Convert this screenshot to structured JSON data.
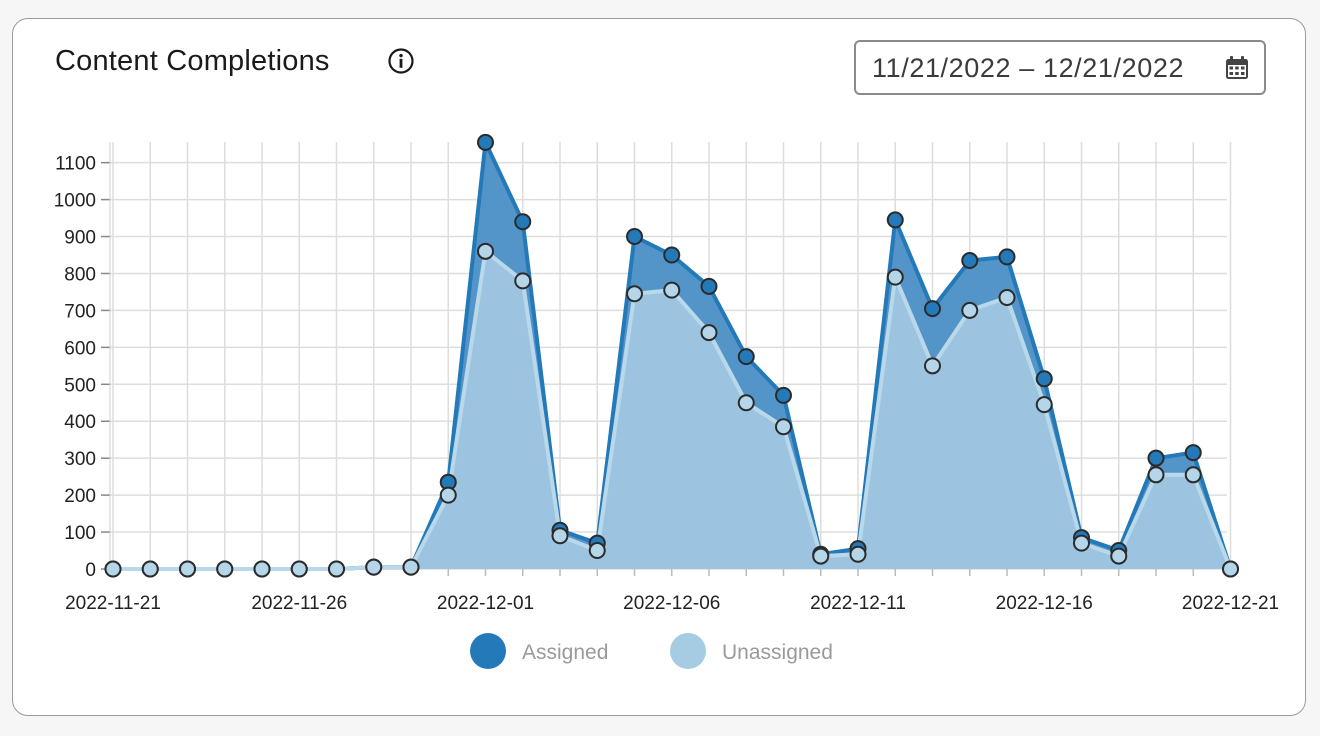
{
  "card": {
    "title": "Content Completions",
    "date_range": "11/21/2022 – 12/21/2022"
  },
  "icons": {
    "info": "info-circle-icon",
    "calendar": "calendar-icon"
  },
  "colors": {
    "assigned": "#2479b8",
    "assigned_fill": "#4b8fc6",
    "unassigned": "#a6cce3",
    "unassigned_fill": "#9cc4e0",
    "grid": "#dddddd"
  },
  "chart_data": {
    "type": "area",
    "title": "",
    "xlabel": "",
    "ylabel": "",
    "ylim": [
      0,
      1150
    ],
    "y_ticks": [
      0,
      100,
      200,
      300,
      400,
      500,
      600,
      700,
      800,
      900,
      1000,
      1100
    ],
    "x_tick_labels": [
      "2022-11-21",
      "2022-11-26",
      "2022-12-01",
      "2022-12-06",
      "2022-12-11",
      "2022-12-16",
      "2022-12-21"
    ],
    "x": [
      "2022-11-21",
      "2022-11-22",
      "2022-11-23",
      "2022-11-24",
      "2022-11-25",
      "2022-11-26",
      "2022-11-27",
      "2022-11-28",
      "2022-11-29",
      "2022-11-30",
      "2022-12-01",
      "2022-12-02",
      "2022-12-03",
      "2022-12-04",
      "2022-12-05",
      "2022-12-06",
      "2022-12-07",
      "2022-12-08",
      "2022-12-09",
      "2022-12-10",
      "2022-12-11",
      "2022-12-12",
      "2022-12-13",
      "2022-12-14",
      "2022-12-15",
      "2022-12-16",
      "2022-12-17",
      "2022-12-18",
      "2022-12-19",
      "2022-12-20",
      "2022-12-21"
    ],
    "grid": true,
    "legend_position": "bottom-center",
    "series": [
      {
        "name": "Assigned",
        "values": [
          0,
          0,
          0,
          0,
          0,
          0,
          0,
          5,
          5,
          235,
          1155,
          940,
          105,
          70,
          900,
          850,
          765,
          575,
          470,
          40,
          55,
          945,
          705,
          835,
          845,
          515,
          85,
          50,
          300,
          315,
          0
        ]
      },
      {
        "name": "Unassigned",
        "values": [
          0,
          0,
          0,
          0,
          0,
          0,
          0,
          5,
          5,
          200,
          860,
          780,
          90,
          50,
          745,
          755,
          640,
          450,
          385,
          35,
          40,
          790,
          550,
          700,
          735,
          445,
          70,
          35,
          255,
          255,
          0
        ]
      }
    ]
  }
}
